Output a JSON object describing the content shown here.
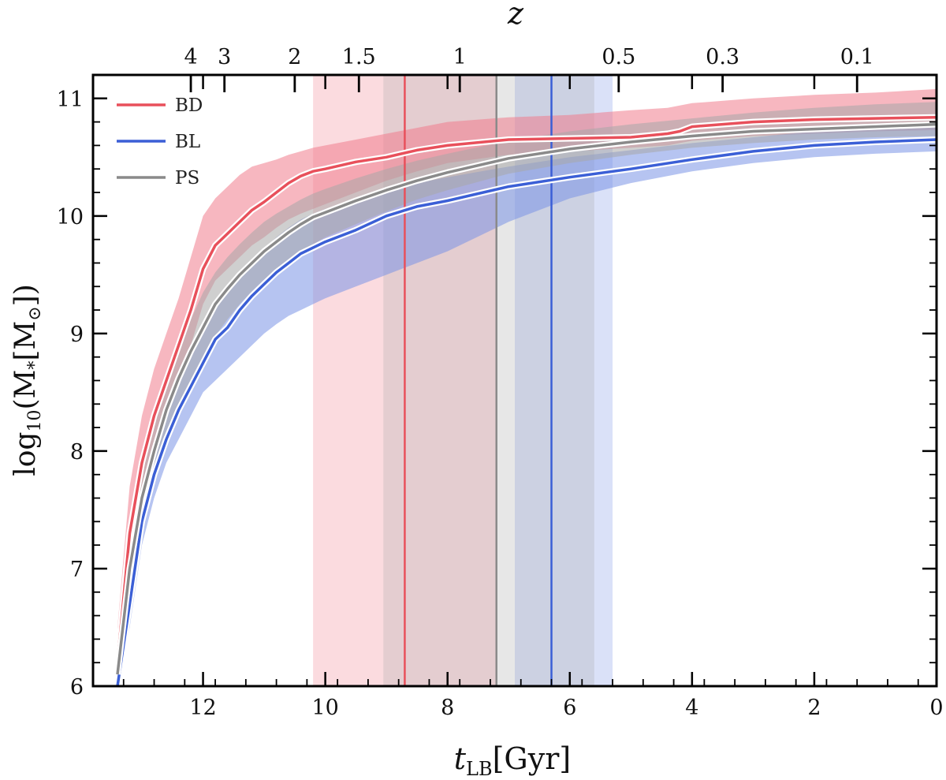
{
  "chart_data": {
    "type": "line",
    "xlabel": {
      "main": "t",
      "sub": "LB",
      "unit": "[Gyr]"
    },
    "ylabel": {
      "pre": "log",
      "sub": "10",
      "mid": "(M",
      "star": "*",
      "unit": "[M",
      "sun": "⊙",
      "end": "])"
    },
    "top_axis_label": "z",
    "xlim": [
      13.8,
      0
    ],
    "ylim": [
      6,
      11.2
    ],
    "x_ticks": [
      12,
      10,
      8,
      6,
      4,
      2,
      0
    ],
    "x_tick_labels": [
      "12",
      "10",
      "8",
      "6",
      "4",
      "2",
      "0"
    ],
    "y_ticks": [
      6,
      7,
      8,
      9,
      10,
      11
    ],
    "y_tick_labels": [
      "6",
      "7",
      "8",
      "9",
      "10",
      "11"
    ],
    "top_ticks": [
      {
        "label": "4",
        "t_lb": 12.2
      },
      {
        "label": "3",
        "t_lb": 11.65
      },
      {
        "label": "2",
        "t_lb": 10.5
      },
      {
        "label": "1.5",
        "t_lb": 9.45
      },
      {
        "label": "1",
        "t_lb": 7.8
      },
      {
        "label": "0.5",
        "t_lb": 5.2
      },
      {
        "label": "0.3",
        "t_lb": 3.5
      },
      {
        "label": "0.1",
        "t_lb": 1.3
      }
    ],
    "grid": false,
    "legend_position": "top-left",
    "series": [
      {
        "name": "BD",
        "color": "#e8505b",
        "band_color": "#f07c8c",
        "x": [
          13.4,
          13.2,
          13.0,
          12.8,
          12.6,
          12.4,
          12.2,
          12.0,
          11.8,
          11.6,
          11.4,
          11.2,
          11.0,
          10.8,
          10.6,
          10.4,
          10.2,
          10.0,
          9.5,
          9.0,
          8.5,
          8.0,
          7.0,
          6.0,
          5.0,
          4.4,
          4.2,
          4.0,
          3.0,
          2.0,
          1.0,
          0.0
        ],
        "y": [
          6.2,
          7.3,
          7.9,
          8.3,
          8.6,
          8.9,
          9.2,
          9.55,
          9.75,
          9.85,
          9.95,
          10.05,
          10.12,
          10.2,
          10.28,
          10.34,
          10.38,
          10.4,
          10.46,
          10.5,
          10.56,
          10.6,
          10.65,
          10.66,
          10.67,
          10.7,
          10.72,
          10.76,
          10.8,
          10.82,
          10.83,
          10.84
        ],
        "lower": [
          6.0,
          7.0,
          7.6,
          8.0,
          8.3,
          8.6,
          8.9,
          9.25,
          9.45,
          9.55,
          9.65,
          9.75,
          9.82,
          9.9,
          9.97,
          10.02,
          10.06,
          10.1,
          10.2,
          10.3,
          10.38,
          10.45,
          10.52,
          10.55,
          10.58,
          10.6,
          10.62,
          10.64,
          10.68,
          10.7,
          10.72,
          10.73
        ],
        "upper": [
          6.5,
          7.7,
          8.3,
          8.7,
          9.0,
          9.3,
          9.65,
          10.0,
          10.15,
          10.25,
          10.35,
          10.42,
          10.45,
          10.48,
          10.52,
          10.55,
          10.58,
          10.6,
          10.65,
          10.7,
          10.75,
          10.8,
          10.84,
          10.86,
          10.9,
          10.92,
          10.94,
          10.96,
          11.0,
          11.03,
          11.05,
          11.08
        ],
        "vline": 8.7,
        "vband": [
          10.2,
          7.2
        ]
      },
      {
        "name": "BL",
        "color": "#3b5fd6",
        "band_color": "#7a93e6",
        "x": [
          13.4,
          13.2,
          13.0,
          12.8,
          12.6,
          12.4,
          12.2,
          12.0,
          11.8,
          11.6,
          11.4,
          11.2,
          11.0,
          10.8,
          10.6,
          10.4,
          10.2,
          10.0,
          9.5,
          9.0,
          8.5,
          8.0,
          7.0,
          6.0,
          5.0,
          4.0,
          3.0,
          2.0,
          1.0,
          0.0
        ],
        "y": [
          6.0,
          6.7,
          7.4,
          7.8,
          8.1,
          8.35,
          8.55,
          8.75,
          8.95,
          9.05,
          9.2,
          9.32,
          9.42,
          9.52,
          9.6,
          9.68,
          9.73,
          9.78,
          9.88,
          10.0,
          10.08,
          10.13,
          10.25,
          10.33,
          10.4,
          10.48,
          10.55,
          10.6,
          10.63,
          10.65
        ],
        "lower": [
          6.0,
          6.5,
          7.2,
          7.6,
          7.9,
          8.1,
          8.3,
          8.5,
          8.6,
          8.7,
          8.8,
          8.9,
          9.0,
          9.08,
          9.15,
          9.2,
          9.25,
          9.3,
          9.4,
          9.5,
          9.6,
          9.7,
          9.95,
          10.15,
          10.28,
          10.38,
          10.45,
          10.5,
          10.53,
          10.55
        ],
        "upper": [
          6.2,
          6.95,
          7.65,
          8.05,
          8.35,
          8.6,
          8.8,
          9.0,
          9.2,
          9.35,
          9.5,
          9.62,
          9.72,
          9.82,
          9.9,
          9.97,
          10.02,
          10.06,
          10.14,
          10.22,
          10.28,
          10.33,
          10.42,
          10.5,
          10.56,
          10.62,
          10.67,
          10.72,
          10.76,
          10.78
        ],
        "vline": 6.3,
        "vband": [
          6.9,
          5.3
        ]
      },
      {
        "name": "PS",
        "color": "#8a8a8a",
        "band_color": "#a8a8a8",
        "x": [
          13.4,
          13.2,
          13.0,
          12.8,
          12.6,
          12.4,
          12.2,
          12.0,
          11.8,
          11.6,
          11.4,
          11.2,
          11.0,
          10.8,
          10.6,
          10.4,
          10.2,
          10.0,
          9.5,
          9.0,
          8.5,
          8.0,
          7.0,
          6.0,
          5.0,
          4.0,
          3.0,
          2.0,
          1.0,
          0.0
        ],
        "y": [
          6.1,
          7.0,
          7.6,
          8.0,
          8.35,
          8.62,
          8.85,
          9.05,
          9.25,
          9.38,
          9.5,
          9.6,
          9.7,
          9.78,
          9.86,
          9.93,
          9.99,
          10.03,
          10.13,
          10.22,
          10.3,
          10.37,
          10.49,
          10.57,
          10.63,
          10.68,
          10.72,
          10.74,
          10.76,
          10.78
        ],
        "lower": [
          6.0,
          6.8,
          7.35,
          7.75,
          8.1,
          8.35,
          8.58,
          8.78,
          8.98,
          9.12,
          9.25,
          9.36,
          9.46,
          9.55,
          9.63,
          9.7,
          9.76,
          9.82,
          9.93,
          10.04,
          10.14,
          10.22,
          10.36,
          10.45,
          10.52,
          10.58,
          10.62,
          10.65,
          10.67,
          10.68
        ],
        "upper": [
          6.3,
          7.25,
          7.85,
          8.28,
          8.62,
          8.9,
          9.12,
          9.35,
          9.52,
          9.65,
          9.76,
          9.86,
          9.95,
          10.02,
          10.08,
          10.14,
          10.19,
          10.23,
          10.32,
          10.4,
          10.47,
          10.53,
          10.64,
          10.72,
          10.78,
          10.83,
          10.88,
          10.92,
          10.95,
          10.97
        ],
        "vline": 7.2,
        "vband": [
          9.05,
          5.6
        ]
      }
    ]
  }
}
